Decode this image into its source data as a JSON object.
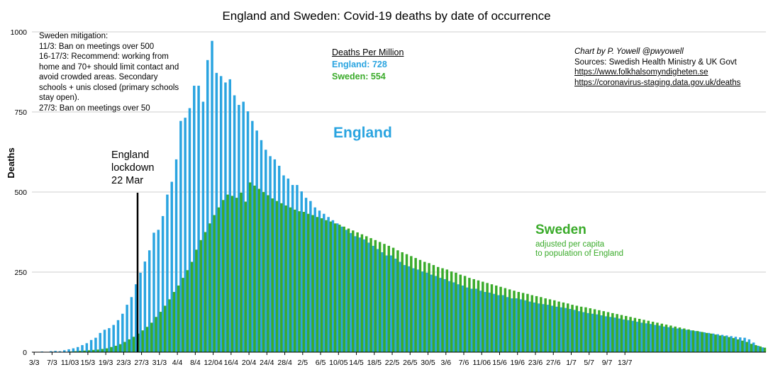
{
  "chart_data": {
    "type": "bar",
    "title": "England and Sweden: Covid-19 deaths by date of occurrence",
    "ylabel": "Deaths",
    "xlabel": "",
    "ylim": [
      0,
      1000
    ],
    "yticks": [
      0,
      250,
      500,
      750,
      1000
    ],
    "x_tick_labels": [
      "3/3",
      "7/3",
      "11/03",
      "15/3",
      "19/3",
      "23/3",
      "27/3",
      "31/3",
      "4/4",
      "8/4",
      "12/04",
      "16/4",
      "20/4",
      "24/4",
      "28/4",
      "2/5",
      "6/5",
      "10/05",
      "14/5",
      "18/5",
      "22/5",
      "26/5",
      "30/5",
      "3/6",
      "7/6",
      "11/06",
      "15/6",
      "19/6",
      "23/6",
      "27/6",
      "1/7",
      "5/7",
      "9/7",
      "13/7"
    ],
    "legend": "none",
    "grid": "horizontal",
    "series": [
      {
        "name": "England",
        "color": "#2aa4e0",
        "values": [
          1,
          1,
          2,
          1,
          3,
          4,
          3,
          6,
          9,
          12,
          16,
          22,
          28,
          38,
          45,
          60,
          70,
          75,
          85,
          100,
          120,
          148,
          172,
          212,
          248,
          283,
          318,
          373,
          382,
          425,
          492,
          532,
          602,
          722,
          732,
          762,
          832,
          832,
          782,
          912,
          972,
          872,
          862,
          842,
          852,
          802,
          772,
          782,
          752,
          722,
          692,
          662,
          632,
          612,
          602,
          582,
          552,
          542,
          522,
          522,
          502,
          482,
          472,
          452,
          442,
          432,
          422,
          412,
          402,
          392,
          382,
          372,
          362,
          358,
          352,
          342,
          332,
          322,
          312,
          302,
          302,
          292,
          282,
          272,
          268,
          262,
          258,
          252,
          248,
          242,
          238,
          232,
          228,
          222,
          218,
          212,
          208,
          202,
          198,
          198,
          192,
          188,
          186,
          182,
          178,
          178,
          172,
          168,
          168,
          165,
          162,
          158,
          155,
          152,
          150,
          148,
          145,
          142,
          140,
          138,
          135,
          132,
          128,
          125,
          122,
          120,
          118,
          115,
          112,
          110,
          108,
          105,
          102,
          100,
          98,
          95,
          92,
          90,
          88,
          85,
          83,
          80,
          78,
          76,
          74,
          72,
          70,
          68,
          66,
          64,
          62,
          60,
          58,
          56,
          54,
          52,
          50,
          48,
          46,
          45,
          40,
          30,
          20,
          15
        ]
      },
      {
        "name": "Sweden",
        "color": "#3aab2a",
        "values": [
          0,
          0,
          0,
          0,
          0,
          0,
          1,
          1,
          2,
          3,
          4,
          5,
          6,
          7,
          8,
          10,
          12,
          16,
          20,
          25,
          32,
          40,
          48,
          58,
          68,
          79,
          92,
          110,
          126,
          145,
          165,
          188,
          208,
          232,
          256,
          282,
          320,
          350,
          375,
          402,
          428,
          452,
          475,
          492,
          488,
          482,
          498,
          470,
          530,
          520,
          510,
          500,
          490,
          480,
          472,
          465,
          458,
          452,
          445,
          440,
          438,
          432,
          428,
          422,
          418,
          412,
          408,
          402,
          398,
          392,
          386,
          380,
          374,
          368,
          362,
          356,
          350,
          344,
          338,
          332,
          326,
          318,
          312,
          306,
          300,
          294,
          288,
          282,
          278,
          272,
          266,
          262,
          258,
          252,
          248,
          242,
          238,
          232,
          228,
          224,
          220,
          216,
          212,
          208,
          204,
          200,
          196,
          192,
          188,
          185,
          182,
          178,
          175,
          172,
          168,
          165,
          162,
          158,
          155,
          152,
          148,
          145,
          142,
          140,
          137,
          134,
          131,
          128,
          125,
          122,
          119,
          116,
          113,
          110,
          107,
          104,
          101,
          98,
          95,
          92,
          89,
          86,
          83,
          80,
          77,
          74,
          71,
          68,
          66,
          63,
          60,
          58,
          55,
          52,
          50,
          47,
          44,
          40,
          36,
          32,
          26,
          22,
          18,
          14
        ]
      }
    ]
  },
  "annotations": {
    "sweden_mitigation": [
      "Sweden mitigation:",
      "11/3: Ban on meetings over 500",
      "16-17/3: Recommend: working from",
      "home and 70+ should limit contact and",
      "avoid crowded areas. Secondary",
      "schools + unis closed (primary schools",
      "stay open).",
      "27/3: Ban on meetings over 50"
    ],
    "deaths_per_million": {
      "heading": "Deaths Per Million",
      "england": "England: 728",
      "sweden": "Sweden: 554"
    },
    "credit": {
      "by": "Chart by P. Yowell @pwyowell",
      "sources": "Sources: Swedish Health Ministry & UK Govt",
      "link1": "https://www.folkhalsomyndigheten.se",
      "link2": "https://coronavirus-staging.data.gov.uk/deaths"
    },
    "lockdown": [
      "England",
      "lockdown",
      "22 Mar"
    ],
    "england_label": "England",
    "sweden_label": "Sweden",
    "sweden_sub": [
      "adjusted per capita",
      "to population of England"
    ]
  }
}
